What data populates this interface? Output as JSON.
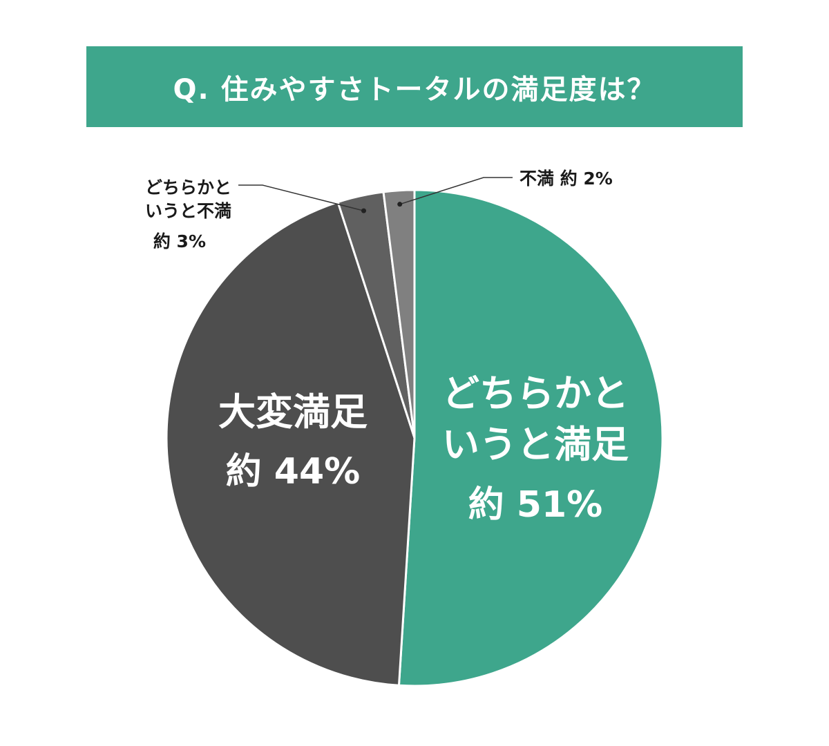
{
  "title": "Q. 住みやすさトータルの満足度は？",
  "colors": {
    "title_bg": "#3ea68c",
    "satisfied_somewhat": "#3ea68c",
    "very_satisfied": "#4e4e4e",
    "dissatisfied_somewhat": "#606060",
    "dissatisfied": "#808080",
    "label_light": "#ffffff",
    "label_dark": "#1a1a1a",
    "leader": "#333333"
  },
  "chart_data": {
    "type": "pie",
    "title": "Q. 住みやすさトータルの満足度は？",
    "start": "12 o'clock",
    "direction": "clockwise",
    "slices": [
      {
        "label_lines": [
          "どちらかと",
          "いうと満足"
        ],
        "value": 51,
        "value_text": "約 51%"
      },
      {
        "label_lines": [
          "大変満足"
        ],
        "value": 44,
        "value_text": "約 44%"
      },
      {
        "label_lines": [
          "どちらかと",
          "いうと不満"
        ],
        "value": 3,
        "value_text": "約 3%"
      },
      {
        "label_lines": [
          "不満"
        ],
        "value": 2,
        "value_text": "約 2%"
      }
    ]
  }
}
